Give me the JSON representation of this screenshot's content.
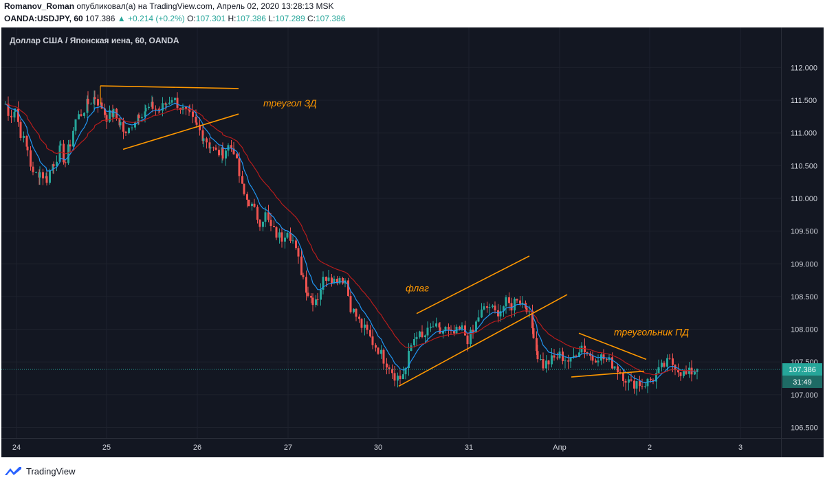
{
  "header": {
    "author": "Romanov_Roman",
    "published": "опубликовал(а) на TradingView.com, Апрель 02, 2020 13:28:13 MSK",
    "symbol": "OANDA:USDJPY, 60",
    "last": "107.386",
    "arrow": "▲",
    "change": "+0.214 (+0.2%)",
    "o_label": "O:",
    "o_value": "107.301",
    "h_label": "H:",
    "h_value": "107.386",
    "l_label": "L:",
    "l_value": "107.289",
    "c_label": "C:",
    "c_value": "107.386"
  },
  "footer": {
    "brand": "TradingView",
    "logo_icon": "tradingview-logo-icon"
  },
  "colors": {
    "background": "#131722",
    "up": "#26a69a",
    "down": "#ef5350",
    "ma_fast": "#2196f3",
    "ma_slow": "#b71c1c",
    "annotation": "#ff9800",
    "axis_text": "#d1d4dc",
    "price_line": "#26a69a"
  },
  "chart_data": {
    "type": "candlestick",
    "title": "Доллар США / Японская иена, 60, OANDA",
    "y_ticks": [
      112.0,
      111.5,
      111.0,
      110.5,
      110.0,
      109.5,
      109.0,
      108.5,
      108.0,
      107.5,
      107.0,
      106.5
    ],
    "y_tick_labels": [
      "112.000",
      "111.500",
      "111.000",
      "110.500",
      "110.000",
      "109.500",
      "109.000",
      "108.500",
      "108.000",
      "107.500",
      "107.000",
      "106.500"
    ],
    "ylim": [
      106.4,
      112.55
    ],
    "x_ticks": [
      {
        "label": "24",
        "pos": 24
      },
      {
        "label": "25",
        "pos": 155
      },
      {
        "label": "26",
        "pos": 287
      },
      {
        "label": "27",
        "pos": 419
      },
      {
        "label": "30",
        "pos": 550
      },
      {
        "label": "31",
        "pos": 682
      },
      {
        "label": "Апр",
        "pos": 814
      },
      {
        "label": "2",
        "pos": 945
      },
      {
        "label": "3",
        "pos": 1077
      }
    ],
    "x_note": "x values are hourly bar indices; 131.5 bar-index units separate each daily tick",
    "current_price": 107.386,
    "current_price_label": "107.386",
    "countdown_label": "31:49",
    "annotations": [
      {
        "text": "треугол ЗД",
        "x": 383,
        "price": 111.46
      },
      {
        "text": "флаг",
        "x": 590,
        "price": 108.63
      },
      {
        "text": "треугольник ПД",
        "x": 893,
        "price": 107.96
      }
    ],
    "trend_lines": [
      {
        "name": "triangle-1-top",
        "p1": [
          146,
          111.72
        ],
        "p2": [
          347,
          111.68
        ]
      },
      {
        "name": "triangle-1-bottom",
        "p1": [
          179,
          110.75
        ],
        "p2": [
          347,
          111.29
        ]
      },
      {
        "name": "flag-top",
        "p1": [
          606,
          108.24
        ],
        "p2": [
          770,
          109.12
        ]
      },
      {
        "name": "flag-bottom",
        "p1": [
          580,
          107.13
        ],
        "p2": [
          825,
          108.53
        ]
      },
      {
        "name": "triangle-2-top",
        "p1": [
          842,
          107.94
        ],
        "p2": [
          940,
          107.54
        ]
      },
      {
        "name": "triangle-2-bottom",
        "p1": [
          831,
          107.27
        ],
        "p2": [
          937,
          107.36
        ]
      }
    ],
    "anchors": [
      [
        8,
        111.45
      ],
      [
        12,
        111.25
      ],
      [
        22,
        111.38
      ],
      [
        30,
        111.0
      ],
      [
        40,
        110.75
      ],
      [
        48,
        110.35
      ],
      [
        58,
        110.4
      ],
      [
        68,
        110.3
      ],
      [
        78,
        110.55
      ],
      [
        88,
        110.75
      ],
      [
        95,
        110.55
      ],
      [
        102,
        110.85
      ],
      [
        110,
        111.2
      ],
      [
        118,
        111.3
      ],
      [
        128,
        111.45
      ],
      [
        138,
        111.55
      ],
      [
        148,
        111.4
      ],
      [
        155,
        111.25
      ],
      [
        165,
        111.3
      ],
      [
        175,
        111.15
      ],
      [
        183,
        110.95
      ],
      [
        192,
        111.15
      ],
      [
        202,
        111.3
      ],
      [
        212,
        111.35
      ],
      [
        222,
        111.4
      ],
      [
        232,
        111.35
      ],
      [
        242,
        111.45
      ],
      [
        250,
        111.55
      ],
      [
        258,
        111.45
      ],
      [
        266,
        111.35
      ],
      [
        276,
        111.25
      ],
      [
        286,
        111.1
      ],
      [
        296,
        110.95
      ],
      [
        306,
        110.8
      ],
      [
        314,
        110.7
      ],
      [
        324,
        110.7
      ],
      [
        332,
        110.8
      ],
      [
        340,
        110.75
      ],
      [
        348,
        110.35
      ],
      [
        355,
        110.05
      ],
      [
        362,
        109.95
      ],
      [
        370,
        109.8
      ],
      [
        378,
        109.65
      ],
      [
        386,
        109.75
      ],
      [
        394,
        109.55
      ],
      [
        402,
        109.45
      ],
      [
        410,
        109.4
      ],
      [
        418,
        109.55
      ],
      [
        426,
        109.35
      ],
      [
        434,
        109.05
      ],
      [
        441,
        108.8
      ],
      [
        448,
        108.55
      ],
      [
        455,
        108.45
      ],
      [
        462,
        108.5
      ],
      [
        470,
        108.75
      ],
      [
        478,
        108.85
      ],
      [
        486,
        108.75
      ],
      [
        494,
        108.8
      ],
      [
        502,
        108.75
      ],
      [
        510,
        108.35
      ],
      [
        518,
        108.2
      ],
      [
        526,
        108.05
      ],
      [
        534,
        107.95
      ],
      [
        542,
        107.8
      ],
      [
        550,
        107.7
      ],
      [
        558,
        107.55
      ],
      [
        566,
        107.45
      ],
      [
        574,
        107.3
      ],
      [
        582,
        107.25
      ],
      [
        590,
        107.4
      ],
      [
        598,
        107.75
      ],
      [
        606,
        107.95
      ],
      [
        614,
        107.85
      ],
      [
        622,
        107.95
      ],
      [
        630,
        108.05
      ],
      [
        640,
        107.95
      ],
      [
        648,
        108.0
      ],
      [
        656,
        107.9
      ],
      [
        664,
        107.95
      ],
      [
        672,
        108.0
      ],
      [
        680,
        107.85
      ],
      [
        688,
        107.95
      ],
      [
        696,
        108.2
      ],
      [
        704,
        108.3
      ],
      [
        712,
        108.35
      ],
      [
        720,
        108.25
      ],
      [
        728,
        108.3
      ],
      [
        736,
        108.4
      ],
      [
        744,
        108.35
      ],
      [
        752,
        108.5
      ],
      [
        760,
        108.4
      ],
      [
        766,
        108.35
      ],
      [
        770,
        108.2
      ],
      [
        776,
        107.95
      ],
      [
        782,
        107.6
      ],
      [
        790,
        107.45
      ],
      [
        798,
        107.5
      ],
      [
        806,
        107.55
      ],
      [
        814,
        107.6
      ],
      [
        822,
        107.55
      ],
      [
        830,
        107.5
      ],
      [
        838,
        107.65
      ],
      [
        846,
        107.75
      ],
      [
        854,
        107.65
      ],
      [
        862,
        107.55
      ],
      [
        870,
        107.6
      ],
      [
        878,
        107.55
      ],
      [
        886,
        107.5
      ],
      [
        894,
        107.45
      ],
      [
        902,
        107.35
      ],
      [
        910,
        107.25
      ],
      [
        918,
        107.15
      ],
      [
        926,
        107.2
      ],
      [
        934,
        107.15
      ],
      [
        942,
        107.2
      ],
      [
        950,
        107.25
      ],
      [
        958,
        107.35
      ],
      [
        966,
        107.45
      ],
      [
        974,
        107.5
      ],
      [
        982,
        107.45
      ],
      [
        990,
        107.35
      ],
      [
        998,
        107.3
      ],
      [
        1006,
        107.35
      ],
      [
        1014,
        107.39
      ]
    ]
  }
}
